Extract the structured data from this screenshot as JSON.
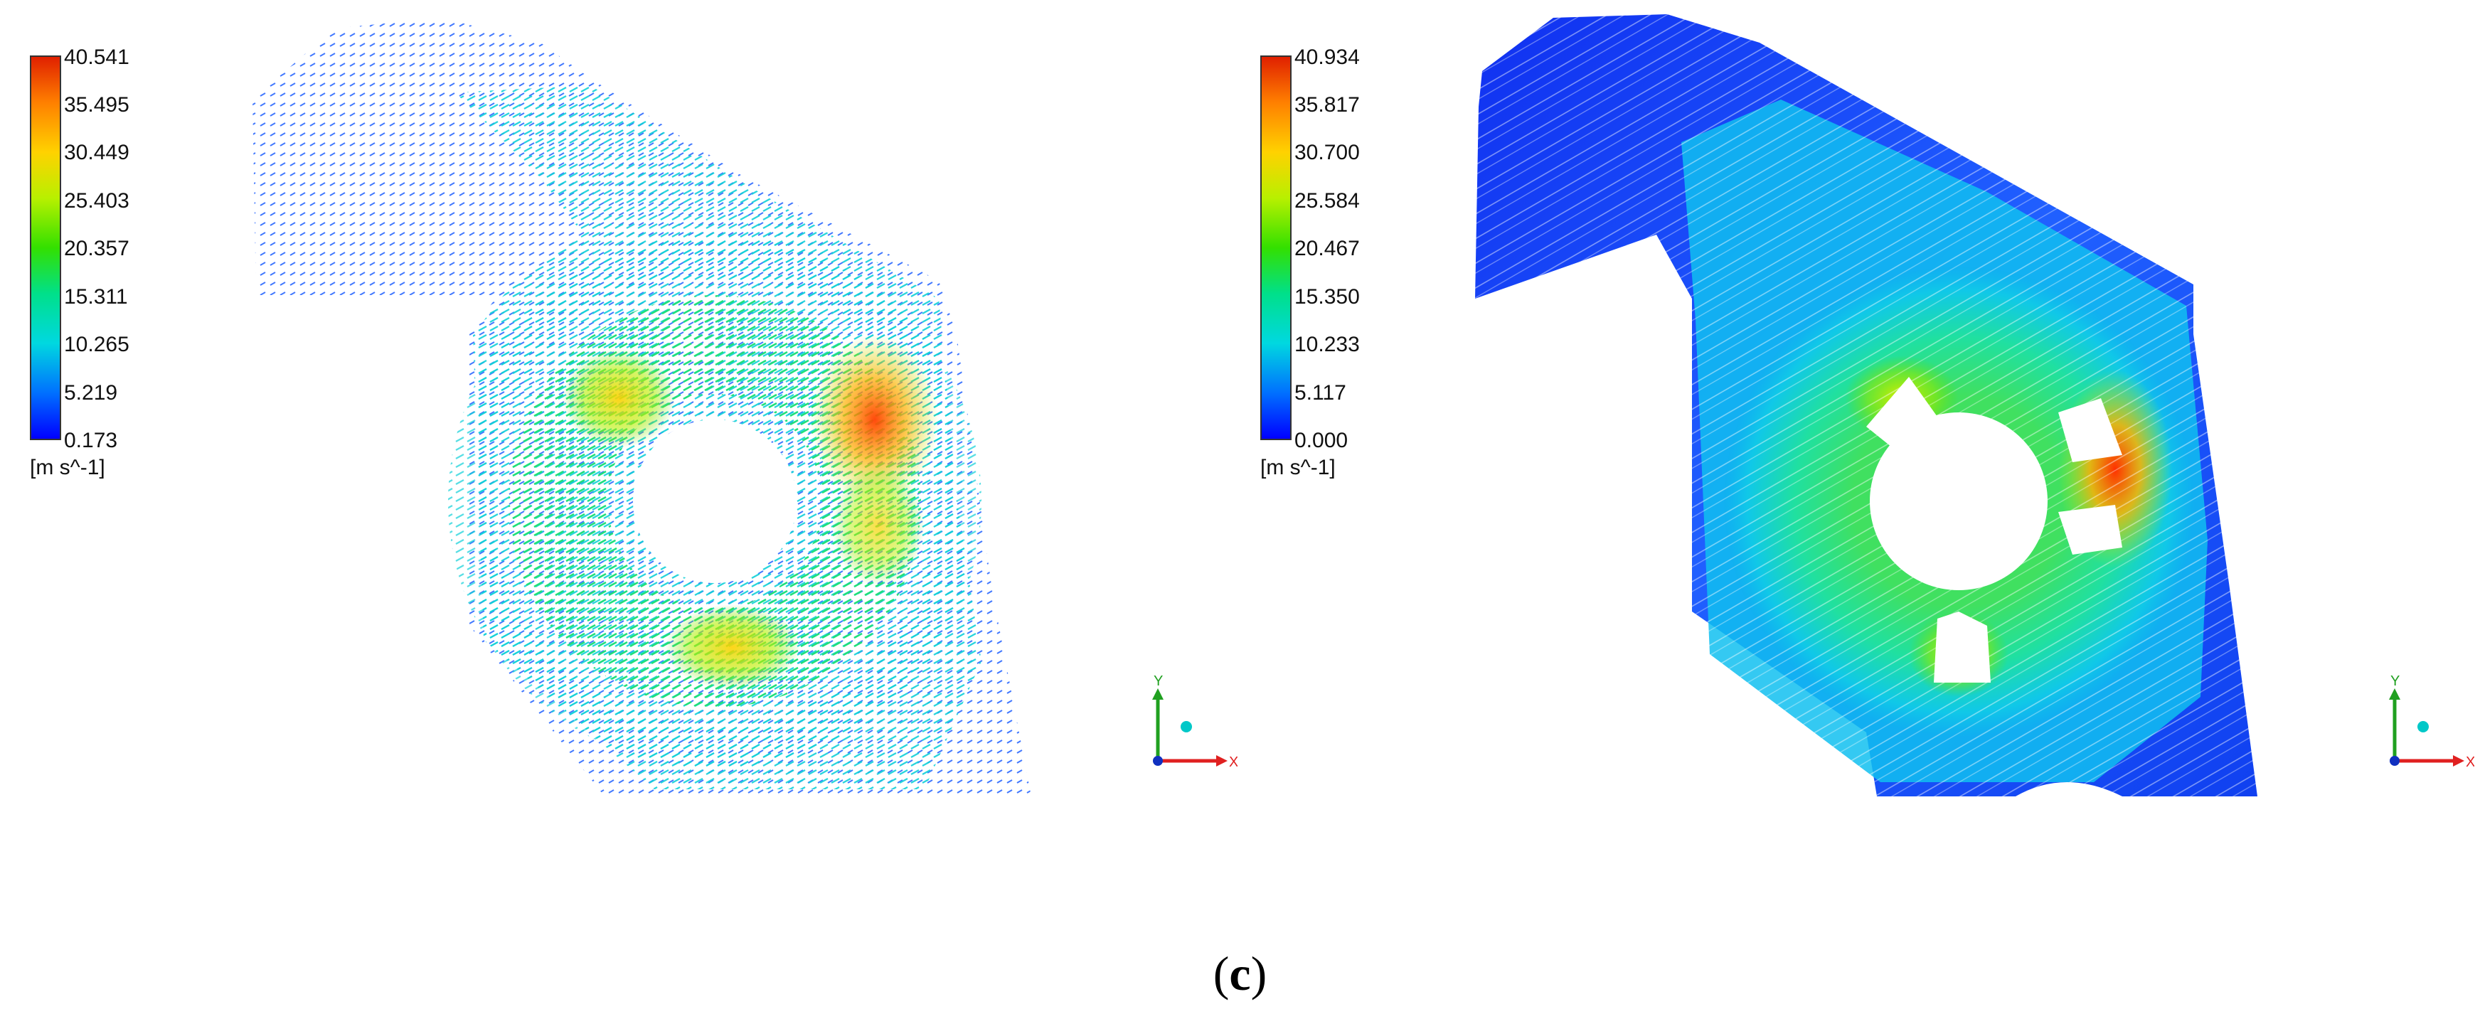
{
  "panels": [
    {
      "kind": "vector",
      "legend": {
        "ticks": [
          "40.541",
          "35.495",
          "30.449",
          "25.403",
          "20.357",
          "15.311",
          "10.265",
          "5.219",
          "0.173"
        ],
        "unit": "[m s^-1]"
      },
      "axis": {
        "y_label": "Y",
        "x_label": "X"
      }
    },
    {
      "kind": "streamline",
      "legend": {
        "ticks": [
          "40.934",
          "35.817",
          "30.700",
          "25.584",
          "20.467",
          "15.350",
          "10.233",
          "5.117",
          "0.000"
        ],
        "unit": "[m s^-1]"
      },
      "axis": {
        "y_label": "Y",
        "x_label": "X"
      }
    }
  ],
  "caption": {
    "open": "(",
    "letter": "c",
    "close": ")"
  },
  "colors": {
    "scale": [
      "#0000ff",
      "#0090ff",
      "#00e0e0",
      "#00e07a",
      "#33e000",
      "#c8f000",
      "#ffd200",
      "#ff7a00",
      "#e82000"
    ],
    "axis_y": "#20a020",
    "axis_x": "#e02020",
    "axis_z": "#00c8c8"
  }
}
